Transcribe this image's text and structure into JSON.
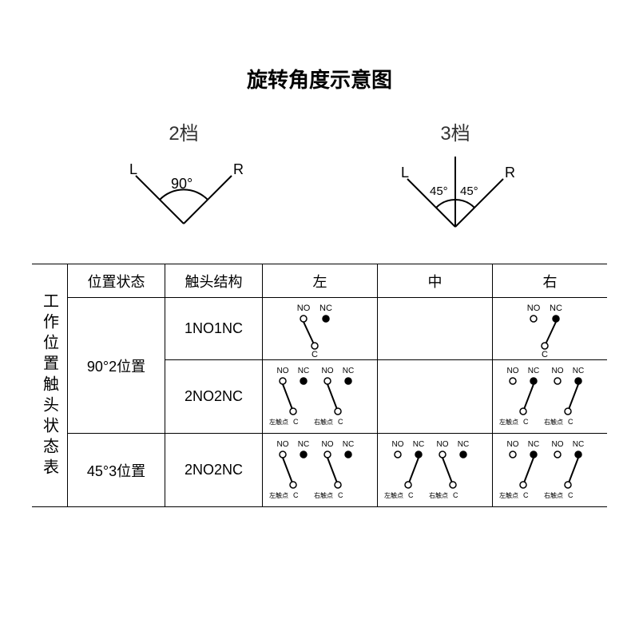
{
  "title": "旋转角度示意图",
  "angles": {
    "two": {
      "label": "2档",
      "L": "L",
      "R": "R",
      "deg": "90°"
    },
    "three": {
      "label": "3档",
      "L": "L",
      "R": "R",
      "degL": "45°",
      "degR": "45°"
    }
  },
  "table": {
    "sideLabel": "工作位置触头状态表",
    "headers": {
      "pos": "位置状态",
      "struct": "触头结构",
      "left": "左",
      "mid": "中",
      "right": "右"
    },
    "rows": {
      "r1": {
        "pos": "90°2位置",
        "struct": "1NO1NC"
      },
      "r2": {
        "struct": "2NO2NC"
      },
      "r3": {
        "pos": "45°3位置",
        "struct": "2NO2NC"
      }
    },
    "labels": {
      "NO": "NO",
      "NC": "NC",
      "C": "C",
      "leftPt": "左触点",
      "rightPt": "右触点"
    }
  },
  "style": {
    "stroke": "#000000",
    "fillOpen": "#ffffff",
    "fillClosed": "#000000",
    "bg": "#ffffff",
    "smallFont": 9,
    "medFont": 11
  }
}
